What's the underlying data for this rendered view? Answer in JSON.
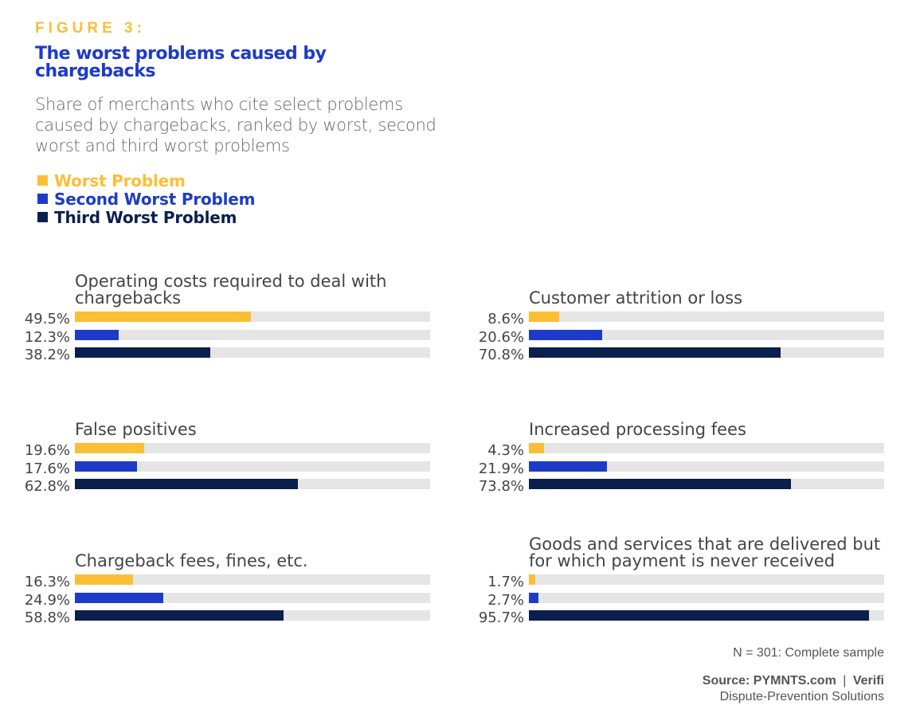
{
  "figure_label": "FIGURE 3:",
  "chart_data": {
    "type": "bar",
    "title": "The worst problems caused by chargebacks",
    "subtitle": "Share of merchants who cite select problems caused by chargebacks, ranked by worst, second worst and third worst problems",
    "legend": [
      {
        "name": "Worst Problem",
        "color": "#fbbf35"
      },
      {
        "name": "Second Worst Problem",
        "color": "#1d3bc7"
      },
      {
        "name": "Third Worst Problem",
        "color": "#0b1f4d"
      }
    ],
    "xlim": [
      0,
      100
    ],
    "panels": [
      {
        "title": "Operating costs required to deal with chargebacks",
        "values": [
          49.5,
          12.3,
          38.2
        ],
        "labels": [
          "49.5%",
          "12.3%",
          "38.2%"
        ]
      },
      {
        "title": "Customer attrition or loss",
        "values": [
          8.6,
          20.6,
          70.8
        ],
        "labels": [
          "8.6%",
          "20.6%",
          "70.8%"
        ]
      },
      {
        "title": "False positives",
        "values": [
          19.6,
          17.6,
          62.8
        ],
        "labels": [
          "19.6%",
          "17.6%",
          "62.8%"
        ]
      },
      {
        "title": "Increased processing fees",
        "values": [
          4.3,
          21.9,
          73.8
        ],
        "labels": [
          "4.3%",
          "21.9%",
          "73.8%"
        ]
      },
      {
        "title": "Chargeback fees, fines, etc.",
        "values": [
          16.3,
          24.9,
          58.8
        ],
        "labels": [
          "16.3%",
          "24.9%",
          "58.8%"
        ]
      },
      {
        "title": "Goods and services that are delivered but for which payment is never received",
        "values": [
          1.7,
          2.7,
          95.7
        ],
        "labels": [
          "1.7%",
          "2.7%",
          "95.7%"
        ]
      }
    ]
  },
  "footer": {
    "sample": "N = 301: Complete sample",
    "source": "Source: PYMNTS.com",
    "separator": "|",
    "partner": "Verifi",
    "partner_sub": "Dispute-Prevention Solutions"
  }
}
